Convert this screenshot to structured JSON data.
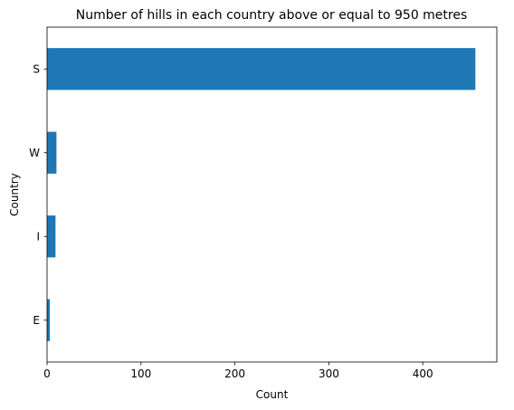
{
  "chart_data": {
    "type": "bar",
    "orientation": "horizontal",
    "title": "Number of hills in each country above or equal to 950 metres",
    "xlabel": "Count",
    "ylabel": "Country",
    "categories": [
      "E",
      "I",
      "W",
      "S"
    ],
    "values": [
      3,
      9,
      10,
      456
    ],
    "xlim": [
      0,
      478.8
    ],
    "xticks": [
      0,
      100,
      200,
      300,
      400
    ],
    "bar_color": "#1f77b4",
    "grid": false,
    "legend": "none"
  }
}
